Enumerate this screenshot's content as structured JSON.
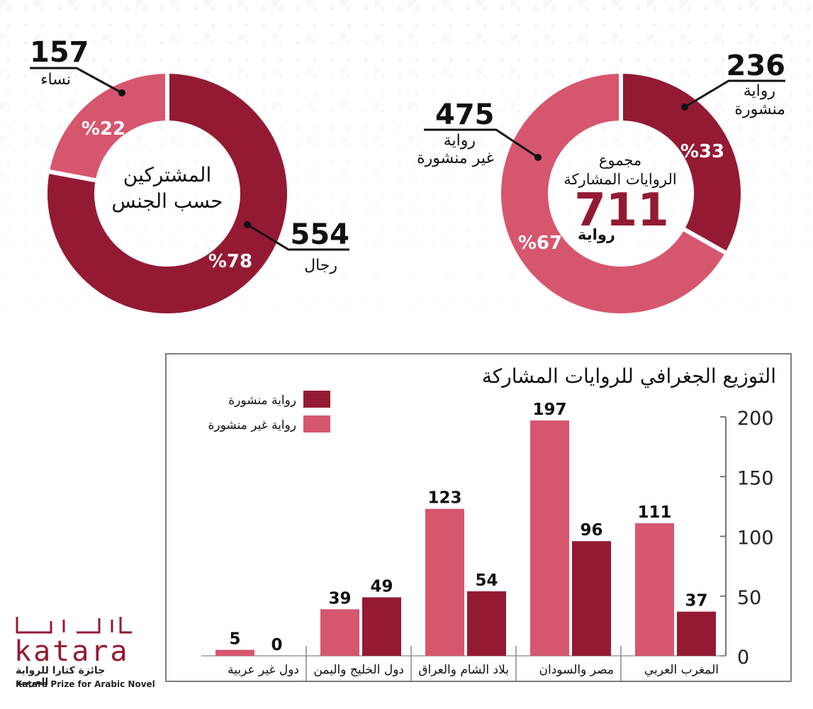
{
  "colors": {
    "published": "#941a33",
    "unpublished": "#d6566e",
    "total_number": "#941a33"
  },
  "gender": {
    "center_line1": "المشتركين",
    "center_line2": "حسب الجنس",
    "women": {
      "count": "157",
      "label": "نساء",
      "pct": "%22"
    },
    "men": {
      "count": "554",
      "label": "رجال",
      "pct": "%78"
    }
  },
  "novels": {
    "center_line1": "مجموع",
    "center_line2": "الروايات المشاركة",
    "total": "711",
    "total_unit": "رواية",
    "published": {
      "count": "236",
      "label1": "رواية",
      "label2": "منشورة",
      "pct": "%33"
    },
    "unpublished": {
      "count": "475",
      "label1": "رواية",
      "label2": "غير منشورة",
      "pct": "%67"
    }
  },
  "chart_data": [
    {
      "type": "pie",
      "categories": [
        "رجال",
        "نساء"
      ],
      "values": [
        554,
        157
      ],
      "percentages": [
        78,
        22
      ]
    },
    {
      "type": "pie",
      "categories": [
        "رواية منشورة",
        "رواية غير منشورة"
      ],
      "values": [
        236,
        475
      ],
      "percentages": [
        33,
        67
      ]
    },
    {
      "type": "bar",
      "title": "التوزيع الجغرافي للروايات المشاركة",
      "categories": [
        "المغرب العربي",
        "مصر والسودان",
        "بلاد الشام والعراق",
        "دول الخليج واليمن",
        "دول غير عربية"
      ],
      "series": [
        {
          "name": "رواية منشورة",
          "values": [
            37,
            96,
            54,
            49,
            0
          ]
        },
        {
          "name": "رواية غير منشورة",
          "values": [
            111,
            197,
            123,
            39,
            5
          ]
        }
      ],
      "ylim": [
        0,
        200
      ],
      "yticks": [
        0,
        50,
        100,
        150,
        200
      ],
      "legend_position": "top-left",
      "axis_position": "right"
    }
  ],
  "logo": {
    "wordmark": "katara",
    "arabic_mark": "كتارا",
    "arabic_name": "جائزة كتارا للرواية العربية",
    "english_name": "Katara Prize for Arabic Novel"
  }
}
